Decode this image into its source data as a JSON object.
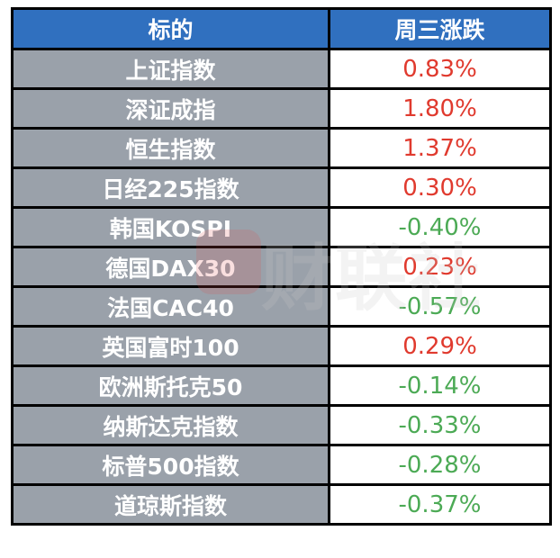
{
  "header": {
    "col1": "标的",
    "col2": "周三涨跌"
  },
  "colors": {
    "header_bg": "#3070bf",
    "name_bg": "#9aa1aa",
    "up": "#e03a2e",
    "down": "#4caa55"
  },
  "rows": [
    {
      "name": "上证指数",
      "change": "0.83%",
      "dir": "up"
    },
    {
      "name": "深证成指",
      "change": "1.80%",
      "dir": "up"
    },
    {
      "name": "恒生指数",
      "change": "1.37%",
      "dir": "up"
    },
    {
      "name": "日经225指数",
      "change": "0.30%",
      "dir": "up"
    },
    {
      "name": "韩国KOSPI",
      "change": "-0.40%",
      "dir": "down"
    },
    {
      "name": "德国DAX30",
      "change": "0.23%",
      "dir": "up"
    },
    {
      "name": "法国CAC40",
      "change": "-0.57%",
      "dir": "down"
    },
    {
      "name": "英国富时100",
      "change": "0.29%",
      "dir": "up"
    },
    {
      "name": "欧洲斯托克50",
      "change": "-0.14%",
      "dir": "down"
    },
    {
      "name": "纳斯达克指数",
      "change": "-0.33%",
      "dir": "down"
    },
    {
      "name": "标普500指数",
      "change": "-0.28%",
      "dir": "down"
    },
    {
      "name": "道琼斯指数",
      "change": "-0.37%",
      "dir": "down"
    }
  ],
  "watermark": "财联社"
}
